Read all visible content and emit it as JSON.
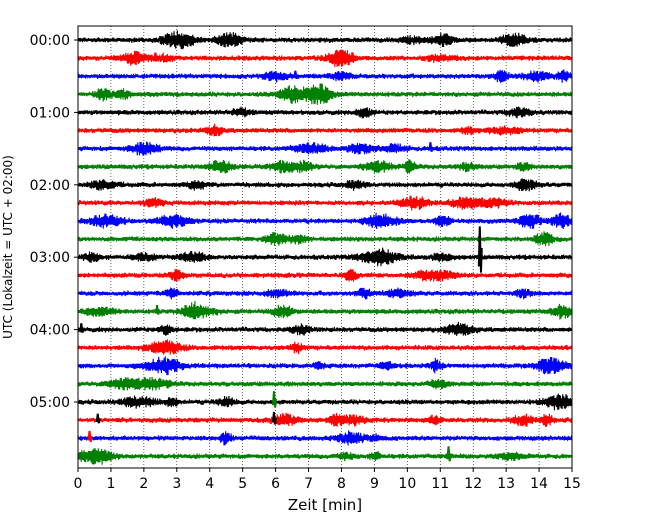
{
  "chart_data": {
    "type": "line",
    "title": "",
    "xlabel": "Zeit  [min]",
    "ylabel": "UTC (Lokalzeit = UTC + 02:00)",
    "xlim": [
      0,
      15
    ],
    "x_ticks": [
      "0",
      "1",
      "2",
      "3",
      "4",
      "5",
      "6",
      "7",
      "8",
      "9",
      "10",
      "11",
      "12",
      "13",
      "14",
      "15"
    ],
    "y_tick_labels": [
      "00:00",
      "01:00",
      "02:00",
      "03:00",
      "04:00",
      "05:00"
    ],
    "y_tick_rows": [
      0,
      4,
      8,
      12,
      16,
      20
    ],
    "grid": "vertical dotted at each minute",
    "row_count": 24,
    "row_interval_minutes": 15,
    "row_colors": [
      "#000000",
      "#ff0000",
      "#0000ff",
      "#008000"
    ],
    "spikes": [
      {
        "row": 12,
        "minute": 12.2,
        "amplitude": 1.7,
        "color": "#000000"
      },
      {
        "row": 20,
        "minute": 5.95,
        "amplitude": 0.6,
        "color": "#008000"
      },
      {
        "row": 21,
        "minute": 5.95,
        "amplitude": 0.45,
        "color": "#000000"
      },
      {
        "row": 23,
        "minute": 11.25,
        "amplitude": 0.55,
        "color": "#008000"
      },
      {
        "row": 22,
        "minute": 0.35,
        "amplitude": 0.4,
        "color": "#ff0000"
      },
      {
        "row": 19,
        "minute": 1.45,
        "amplitude": 0.35,
        "color": "#008000"
      },
      {
        "row": 21,
        "minute": 0.6,
        "amplitude": 0.35,
        "color": "#000000"
      },
      {
        "row": 15,
        "minute": 2.4,
        "amplitude": 0.35,
        "color": "#008000"
      },
      {
        "row": 6,
        "minute": 10.7,
        "amplitude": 0.35,
        "color": "#0000ff"
      },
      {
        "row": 1,
        "minute": 2.35,
        "amplitude": 0.3,
        "color": "#ff0000"
      },
      {
        "row": 2,
        "minute": 6.6,
        "amplitude": 0.3,
        "color": "#0000ff"
      },
      {
        "row": 16,
        "minute": 0.1,
        "amplitude": 0.35,
        "color": "#000000"
      }
    ]
  }
}
